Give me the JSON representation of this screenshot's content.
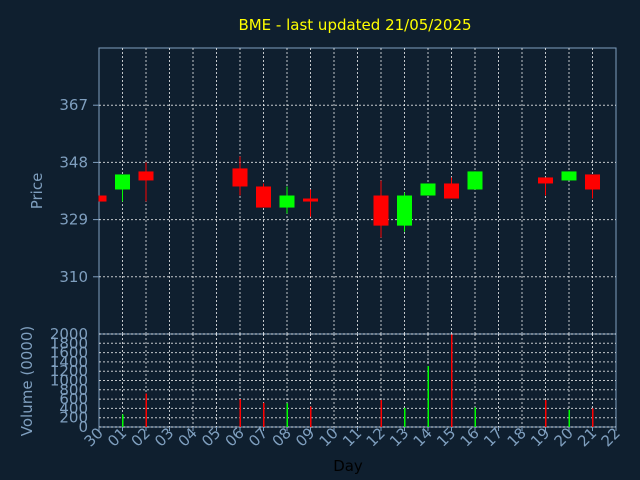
{
  "title": "BME - last updated 21/05/2025",
  "chart_data": [
    {
      "type": "candlestick",
      "ylabel": "Price",
      "ylim": [
        291,
        386
      ],
      "yticks": [
        "310",
        "329",
        "348",
        "367"
      ],
      "grid": true,
      "up_color": "#00ff00",
      "down_color": "#ff0000",
      "candles": [
        {
          "day": "30",
          "open": 337,
          "close": 335,
          "high": 337,
          "low": 335
        },
        {
          "day": "01",
          "open": 339,
          "close": 344,
          "high": 344,
          "low": 335
        },
        {
          "day": "02",
          "open": 345,
          "close": 342,
          "high": 348,
          "low": 335
        },
        {
          "day": "06",
          "open": 346,
          "close": 340,
          "high": 350,
          "low": 337
        },
        {
          "day": "07",
          "open": 340,
          "close": 333,
          "high": 341,
          "low": 333
        },
        {
          "day": "08",
          "open": 333,
          "close": 337,
          "high": 340,
          "low": 331
        },
        {
          "day": "09",
          "open": 336,
          "close": 335,
          "high": 339,
          "low": 330
        },
        {
          "day": "12",
          "open": 337,
          "close": 327,
          "high": 342,
          "low": 323
        },
        {
          "day": "13",
          "open": 327,
          "close": 337,
          "high": 338,
          "low": 325
        },
        {
          "day": "14",
          "open": 337,
          "close": 341,
          "high": 341,
          "low": 337
        },
        {
          "day": "15",
          "open": 341,
          "close": 336,
          "high": 343,
          "low": 336
        },
        {
          "day": "16",
          "open": 339,
          "close": 345,
          "high": 345,
          "low": 339
        },
        {
          "day": "19",
          "open": 343,
          "close": 341,
          "high": 343,
          "low": 337
        },
        {
          "day": "20",
          "open": 342,
          "close": 345,
          "high": 345,
          "low": 342
        },
        {
          "day": "21",
          "open": 344,
          "close": 339,
          "high": 344,
          "low": 336
        }
      ]
    },
    {
      "type": "bar",
      "ylabel": "Volume (0000)",
      "ylim": [
        0,
        2000
      ],
      "yticks": [
        "0",
        "200",
        "400",
        "600",
        "800",
        "1000",
        "1200",
        "1400",
        "1600",
        "1800",
        "2000"
      ],
      "xlabel": "Day",
      "categories": [
        "30",
        "01",
        "02",
        "03",
        "04",
        "05",
        "06",
        "07",
        "08",
        "09",
        "10",
        "11",
        "12",
        "13",
        "14",
        "15",
        "16",
        "17",
        "18",
        "19",
        "20",
        "21",
        "22"
      ],
      "bars": [
        {
          "day": "01",
          "value": 270,
          "color": "#00ff00"
        },
        {
          "day": "02",
          "value": 720,
          "color": "#ff0000"
        },
        {
          "day": "06",
          "value": 600,
          "color": "#ff0000"
        },
        {
          "day": "07",
          "value": 520,
          "color": "#ff0000"
        },
        {
          "day": "08",
          "value": 510,
          "color": "#00ff00"
        },
        {
          "day": "09",
          "value": 440,
          "color": "#ff0000"
        },
        {
          "day": "12",
          "value": 580,
          "color": "#ff0000"
        },
        {
          "day": "13",
          "value": 410,
          "color": "#00ff00"
        },
        {
          "day": "14",
          "value": 1310,
          "color": "#00ff00"
        },
        {
          "day": "15",
          "value": 1990,
          "color": "#ff0000"
        },
        {
          "day": "16",
          "value": 420,
          "color": "#00ff00"
        },
        {
          "day": "19",
          "value": 580,
          "color": "#ff0000"
        },
        {
          "day": "20",
          "value": 370,
          "color": "#00ff00"
        },
        {
          "day": "21",
          "value": 400,
          "color": "#ff0000"
        }
      ]
    }
  ]
}
